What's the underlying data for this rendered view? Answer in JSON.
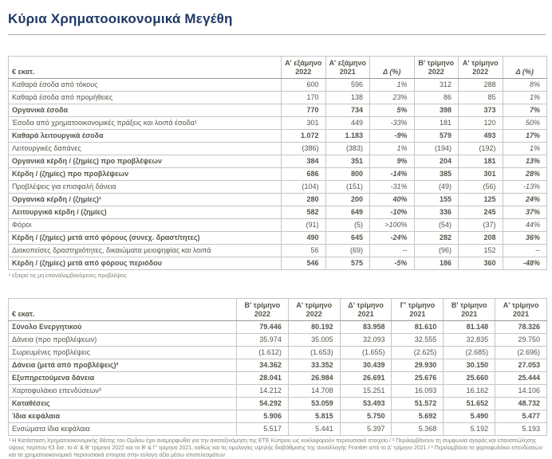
{
  "page": {
    "title": "Κύρια Χρηματοοικονομικά Μεγέθη"
  },
  "table1": {
    "unit_label": "€ εκατ.",
    "col_headers": [
      "Α' εξάμηνο\n2022",
      "Α' εξάμηνο\n2021",
      "Δ (%)",
      "Β' τρίμηνο\n2022",
      "Α' τρίμηνο\n2022",
      "Δ (%)"
    ],
    "rows": [
      {
        "label": "Καθαρά έσοδα από τόκους",
        "bold": false,
        "values": [
          "600",
          "596",
          "1%",
          "312",
          "288",
          "8%"
        ]
      },
      {
        "label": "Καθαρά έσοδα από προμήθειες",
        "bold": false,
        "values": [
          "170",
          "138",
          "23%",
          "86",
          "85",
          "1%"
        ]
      },
      {
        "label": "Οργανικά έσοδα",
        "bold": true,
        "values": [
          "770",
          "734",
          "5%",
          "398",
          "373",
          "7%"
        ]
      },
      {
        "label": "Έσοδα από χρηματοοικονομικές  πράξεις και λοιπά έσοδα¹",
        "bold": false,
        "values": [
          "301",
          "449",
          "-33%",
          "181",
          "120",
          "50%"
        ]
      },
      {
        "label": "Καθαρά λειτουργικά έσοδα",
        "bold": true,
        "values": [
          "1.072",
          "1.183",
          "-9%",
          "579",
          "493",
          "17%"
        ]
      },
      {
        "label": "Λειτουργικές  δαπάνες",
        "bold": false,
        "values": [
          "(386)",
          "(383)",
          "1%",
          "(194)",
          "(192)",
          "1%"
        ]
      },
      {
        "label": "Οργανικά κέρδη / (ζημίες) προ προβλέψεων",
        "bold": true,
        "values": [
          "384",
          "351",
          "9%",
          "204",
          "181",
          "13%"
        ]
      },
      {
        "label": "Κέρδη / (ζημίες) προ προβλέψεων",
        "bold": true,
        "values": [
          "686",
          "800",
          "-14%",
          "385",
          "301",
          "28%"
        ]
      },
      {
        "label": "Προβλέψεις  για επισφαλή δάνεια",
        "bold": false,
        "values": [
          "(104)",
          "(151)",
          "-31%",
          "(49)",
          "(56)",
          "-13%"
        ]
      },
      {
        "label": "Οργανικά κέρδη / (ζημίες)¹",
        "bold": true,
        "values": [
          "280",
          "200",
          "40%",
          "155",
          "125",
          "24%"
        ]
      },
      {
        "label": "Λειτουργικά κέρδη / (ζημίες)",
        "bold": true,
        "values": [
          "582",
          "649",
          "-10%",
          "336",
          "245",
          "37%"
        ]
      },
      {
        "label": "Φόροι",
        "bold": false,
        "values": [
          "(91)",
          "(5)",
          ">100%",
          "(54)",
          "(37)",
          "44%"
        ]
      },
      {
        "label": "Κέρδη / (ζημίες) μετά από φόρους (συνεχ. δραστ/τητες)",
        "bold": true,
        "values": [
          "490",
          "645",
          "-24%",
          "282",
          "208",
          "36%"
        ]
      },
      {
        "label": "Διακοπείσες δραστηριότητες,  δικαιώματα μειοψηφίας  και λοιπά",
        "bold": false,
        "values": [
          "56",
          "(69)",
          "--",
          "(96)",
          "152",
          "--"
        ]
      },
      {
        "label": "Κέρδη / (ζημίες) μετά από φόρους περιόδου",
        "bold": true,
        "values": [
          "546",
          "575",
          "-5%",
          "186",
          "360",
          "-48%"
        ]
      }
    ],
    "footnote": "¹ εξαιρεί τις μη επαναλαμβανόμενες προβλέψεις"
  },
  "table2": {
    "unit_label": "€ εκατ.",
    "col_headers": [
      "Β' τρίμηνο\n2022",
      "Α' τρίμηνο\n2022",
      "Δ' τρίμηνο\n2021",
      "Γ' τρίμηνο\n2021",
      "Β' τρίμηνο\n2021",
      "Α' τρίμηνο\n2021"
    ],
    "rows": [
      {
        "label": "Σύνολο Ενεργητικού",
        "bold": true,
        "values": [
          "79.446",
          "80.192",
          "83.958",
          "81.610",
          "81.148",
          "78.326"
        ]
      },
      {
        "label": "Δάνεια (προ προβλέψεων)",
        "bold": false,
        "values": [
          "35.974",
          "35.005",
          "32.093",
          "32.555",
          "32.835",
          "29.750"
        ]
      },
      {
        "label": "Σωρευμένες προβλέψεις",
        "bold": false,
        "values": [
          "(1.612)",
          "(1.653)",
          "(1.655)",
          "(2.625)",
          "(2.685)",
          "(2.696)"
        ]
      },
      {
        "label": "Δάνεια (μετά από προβλέψεις)²",
        "bold": true,
        "values": [
          "34.362",
          "33.352",
          "30.439",
          "29.930",
          "30.150",
          "27.053"
        ]
      },
      {
        "label": "Εξυπηρετούμενα δάνεια",
        "bold": true,
        "values": [
          "28.041",
          "26.984",
          "26.691",
          "25.676",
          "25.660",
          "25.444"
        ]
      },
      {
        "label": "Χαρτοφυλάκιο  επενδύσεων³",
        "bold": false,
        "values": [
          "14.212",
          "14.708",
          "15.251",
          "16.093",
          "16.162",
          "14.106"
        ]
      },
      {
        "label": "Καταθέσεις",
        "bold": true,
        "values": [
          "54.292",
          "53.059",
          "53.493",
          "51.572",
          "51.652",
          "48.732"
        ]
      },
      {
        "label": "Ίδια κεφάλαια",
        "bold": true,
        "values": [
          "5.906",
          "5.815",
          "5.750",
          "5.692",
          "5.490",
          "5.477"
        ]
      },
      {
        "label": "Ενσώματα ίδια κεφάλαια",
        "bold": false,
        "values": [
          "5.517",
          "5.441",
          "5.397",
          "5.368",
          "5.192",
          "5.193"
        ]
      }
    ],
    "footnote": "¹ Η Κατάσταση Χρηματοοικονομικής Θέσης του Ομίλου έχει αναμορφωθεί για την αναταξινόμηση της ΕΤΕ Κύπρου ως κυκλοφορούν περιουσιακό στοιχείο / ² Περιλαμβάνουν τη συμφωνία αγοράς και επαναπώλησης ύψους περίπου €3 δισ. το Α' & Β' τρίμηνο 2022 και το Β' & Γ' τρίμηνο 2021, καθώς και τις ομολογίες υψηλής διαβάθμισης της συναλλαγής Frontier από το Δ' τρίμηνο 2021 / ³ Περιλαμβάνει το χαρτοφυλάκιο επενδύσεων και τα χρηματοοικονομικά περιουσιακά στοιχεία στην εύλογη αξία μέσω αποτελεσμάτων"
  }
}
